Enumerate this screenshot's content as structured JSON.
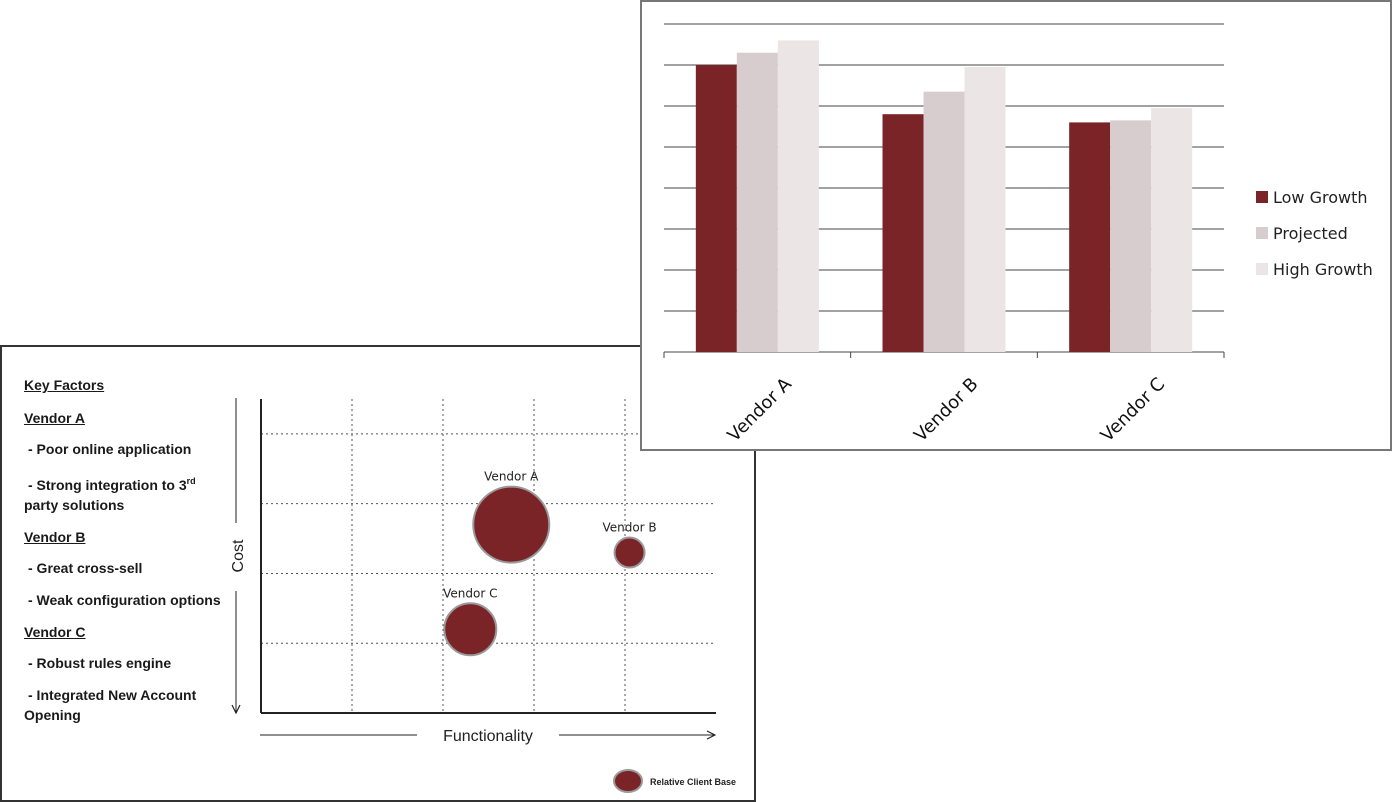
{
  "bubble_panel": {
    "key_factors": {
      "title": "Key Factors",
      "vendor_a": {
        "label": "Vendor A",
        "item1": "- Poor online application",
        "item2_prefix": "- Strong integration to 3",
        "item2_sup": "rd",
        "item2_suffix": "party solutions"
      },
      "vendor_b": {
        "label": "Vendor B",
        "item1": "- Great cross-sell",
        "item2": "- Weak configuration options"
      },
      "vendor_c": {
        "label": "Vendor C",
        "item1": "- Robust rules engine",
        "item2": "- Integrated New Account Opening"
      }
    },
    "legend_label": "Relative Client Base"
  },
  "chart_data": [
    {
      "type": "scatter",
      "subtype": "bubble",
      "xlabel": "Functionality",
      "ylabel": "Cost",
      "xlim": [
        0,
        5
      ],
      "ylim": [
        0,
        4.5
      ],
      "grid": true,
      "points": [
        {
          "label": "Vendor A",
          "x": 2.75,
          "y": 2.7,
          "size": 38
        },
        {
          "label": "Vendor B",
          "x": 4.05,
          "y": 2.3,
          "size": 15
        },
        {
          "label": "Vendor C",
          "x": 2.3,
          "y": 1.2,
          "size": 26
        }
      ],
      "bubble_color": "#7b2428"
    },
    {
      "type": "bar",
      "categories": [
        "Vendor A",
        "Vendor B",
        "Vendor C"
      ],
      "series": [
        {
          "name": "Low Growth",
          "values": [
            7.0,
            5.8,
            5.6
          ],
          "color": "#7b2428"
        },
        {
          "name": "Projected",
          "values": [
            7.3,
            6.35,
            5.65
          ],
          "color": "#d8cdce"
        },
        {
          "name": "High Growth",
          "values": [
            7.6,
            6.95,
            5.95
          ],
          "color": "#ebe5e5"
        }
      ],
      "ylim": [
        0,
        8
      ],
      "grid": true,
      "legend": "right"
    }
  ]
}
